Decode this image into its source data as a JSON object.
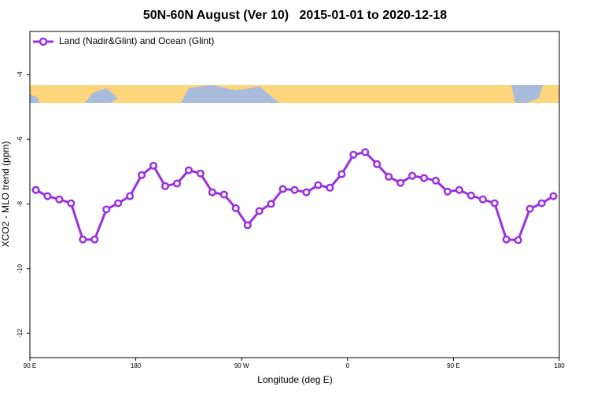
{
  "chart_data": {
    "type": "line",
    "title": "50N-60N August (Ver 10)   2015-01-01 to 2020-12-18",
    "x_label": "Longitude (deg E)",
    "y_label": "XCO2 - MLO trend (ppm)",
    "x": [
      95,
      105,
      115,
      125,
      135,
      145,
      155,
      165,
      175,
      185,
      195,
      205,
      215,
      225,
      235,
      245,
      255,
      265,
      275,
      285,
      295,
      305,
      315,
      325,
      335,
      345,
      355,
      365,
      375,
      385,
      395,
      405,
      415,
      425,
      435,
      445,
      455,
      465,
      475,
      485,
      495,
      505,
      515,
      525,
      535
    ],
    "series": [
      {
        "name": "Land (Nadir&Glint) and Ocean (Glint)",
        "color": "#9b30e0",
        "values": [
          -7.57,
          -7.76,
          -7.86,
          -7.98,
          -9.1,
          -9.1,
          -8.17,
          -7.98,
          -7.76,
          -7.11,
          -6.82,
          -7.45,
          -7.37,
          -6.96,
          -7.06,
          -7.64,
          -7.71,
          -8.13,
          -8.66,
          -8.22,
          -8.0,
          -7.54,
          -7.57,
          -7.64,
          -7.42,
          -7.5,
          -7.08,
          -6.48,
          -6.4,
          -6.77,
          -7.16,
          -7.35,
          -7.13,
          -7.2,
          -7.28,
          -7.62,
          -7.57,
          -7.74,
          -7.86,
          -7.98,
          -9.1,
          -9.12,
          -8.15,
          -7.98,
          -7.76
        ]
      }
    ],
    "xlim": [
      90,
      540
    ],
    "xticks": [
      {
        "value": 90,
        "label": "90 E"
      },
      {
        "value": 180,
        "label": "180"
      },
      {
        "value": 270,
        "label": "90 W"
      },
      {
        "value": 360,
        "label": "0"
      },
      {
        "value": 450,
        "label": "90 E"
      },
      {
        "value": 540,
        "label": "180"
      }
    ],
    "ylim": [
      -12.75,
      -2.67
    ],
    "yticks": [
      -4,
      -6,
      -8,
      -10,
      -12
    ]
  }
}
